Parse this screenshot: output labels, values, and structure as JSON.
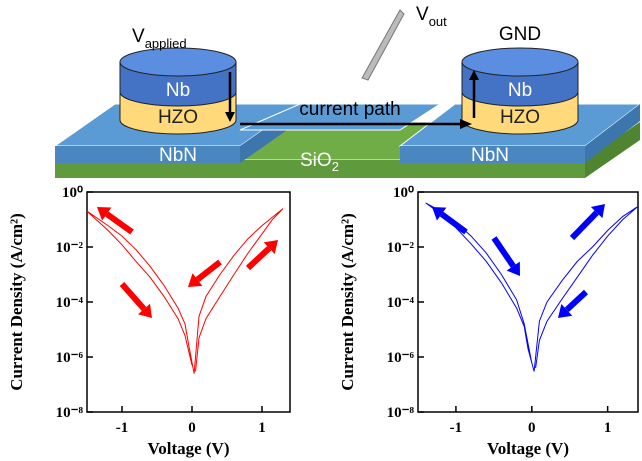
{
  "diagram": {
    "v_applied": {
      "main": "V",
      "sub": "applied"
    },
    "v_out": {
      "main": "V",
      "sub": "out"
    },
    "gnd": "GND",
    "nb_left": "Nb",
    "hzo_left": "HZO",
    "nb_right": "Nb",
    "hzo_right": "HZO",
    "current_path": "current path",
    "nbn_left": "NbN",
    "nbn_right": "NbN",
    "sio2": {
      "main": "SiO",
      "sub": "2"
    }
  },
  "chart_data": [
    {
      "type": "line",
      "xlabel": "Voltage (V)",
      "ylabel": "Current Density (A/cm²)",
      "color": "#ff0000",
      "log_y": true,
      "xlim": [
        -1.5,
        1.4
      ],
      "xticks": [
        -1,
        0,
        1
      ],
      "ylim": [
        1e-08,
        1
      ],
      "yticks": [
        {
          "value": 1e-08,
          "label": "10⁻⁸"
        },
        {
          "value": 1e-06,
          "label": "10⁻⁶"
        },
        {
          "value": 0.0001,
          "label": "10⁻⁴"
        },
        {
          "value": 0.01,
          "label": "10⁻²"
        },
        {
          "value": 1,
          "label": "10⁰"
        }
      ],
      "x": [
        0.05,
        0.1,
        0.2,
        0.4,
        0.6,
        0.8,
        1.0,
        1.15,
        1.3,
        1.0,
        0.8,
        0.6,
        0.4,
        0.2,
        0.1,
        0.03,
        -0.05,
        -0.1,
        -0.2,
        -0.4,
        -0.6,
        -0.8,
        -1.0,
        -1.2,
        -1.5,
        -1.2,
        -1.0,
        -0.8,
        -0.6,
        -0.4,
        -0.2,
        -0.1,
        0.0
      ],
      "values": [
        3e-07,
        5e-06,
        2.5e-05,
        0.00016,
        0.001,
        0.006,
        0.03,
        0.1,
        0.25,
        0.06,
        0.02,
        0.005,
        0.001,
        0.00016,
        3e-05,
        2.5e-07,
        3e-06,
        1.6e-05,
        6e-05,
        0.0004,
        0.002,
        0.008,
        0.025,
        0.06,
        0.2,
        0.04,
        0.012,
        0.003,
        0.0008,
        0.00016,
        2.5e-05,
        6e-06,
        5e-07
      ]
    },
    {
      "type": "line",
      "xlabel": "Voltage (V)",
      "ylabel": "Current Density (A/cm²)",
      "color": "#0000ff",
      "log_y": true,
      "xlim": [
        -1.5,
        1.4
      ],
      "xticks": [
        -1,
        0,
        1
      ],
      "ylim": [
        1e-08,
        1
      ],
      "yticks": [
        {
          "value": 1e-08,
          "label": "10⁻⁸"
        },
        {
          "value": 1e-06,
          "label": "10⁻⁶"
        },
        {
          "value": 0.0001,
          "label": "10⁻⁴"
        },
        {
          "value": 0.01,
          "label": "10⁻²"
        },
        {
          "value": 1,
          "label": "10⁰"
        }
      ],
      "x": [
        0.05,
        0.1,
        0.2,
        0.4,
        0.6,
        0.8,
        1.0,
        1.2,
        1.4,
        1.2,
        1.0,
        0.8,
        0.6,
        0.4,
        0.2,
        0.1,
        0.03,
        -0.05,
        -0.1,
        -0.2,
        -0.4,
        -0.6,
        -0.8,
        -1.0,
        -1.2,
        -1.4,
        -1.2,
        -1.0,
        -0.8,
        -0.6,
        -0.4,
        -0.2,
        -0.1,
        0.0
      ],
      "values": [
        4e-07,
        4e-06,
        2e-05,
        0.00013,
        0.0008,
        0.005,
        0.025,
        0.1,
        0.3,
        0.13,
        0.04,
        0.01,
        0.003,
        0.0006,
        0.0001,
        2e-05,
        3e-07,
        2e-06,
        1.3e-05,
        6e-05,
        0.0005,
        0.003,
        0.013,
        0.05,
        0.16,
        0.4,
        0.2,
        0.08,
        0.025,
        0.006,
        0.001,
        0.00012,
        1.6e-05,
        6e-07
      ]
    }
  ]
}
